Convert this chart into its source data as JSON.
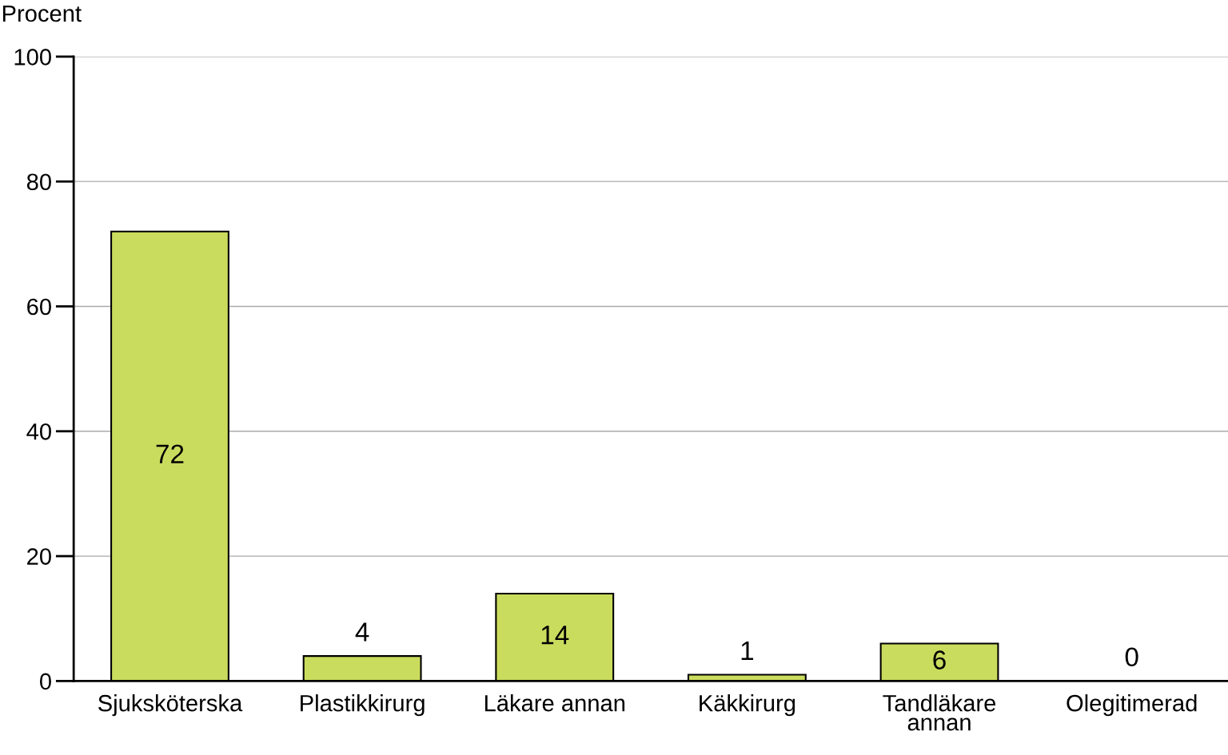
{
  "chart_data": {
    "type": "bar",
    "ylabel": "Procent",
    "categories": [
      "Sjuksköterska",
      "Plastikkirurg",
      "Läkare annan",
      "Käkkirurg",
      "Tandläkare annan",
      "Olegitimerad"
    ],
    "values": [
      72,
      4,
      14,
      1,
      6,
      0
    ],
    "color": "#cadc5e",
    "ylim": [
      0,
      100
    ],
    "yticks": [
      0,
      20,
      40,
      60,
      80,
      100
    ],
    "grid": "y",
    "data_labels": true
  }
}
